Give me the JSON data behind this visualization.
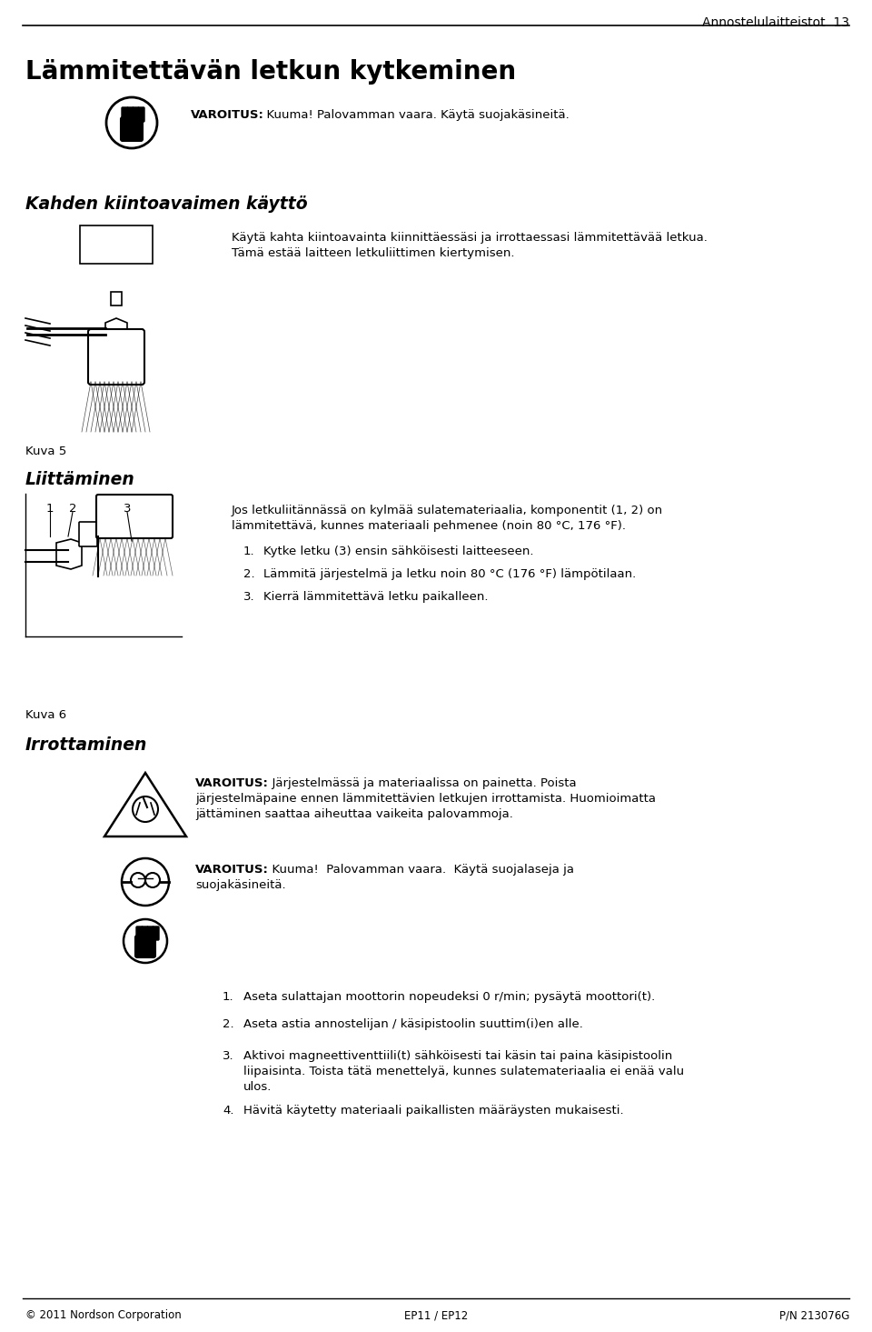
{
  "bg_color": "#ffffff",
  "page_width": 9.6,
  "page_height": 14.65,
  "header_text": "Annostelulaitteistot  13",
  "title": "Lämmitettävän letkun kytkeminen",
  "section1_heading": "Kahden kiintoavaimen käyttö",
  "section1_text1": "Käytä kahta kiintoavainta kiinnittäessäsi ja irrottaessasi lämmitettävää letkua.",
  "section1_text2": "Tämä estää laitteen letkuliittimen kiertymisen.",
  "kuva5_text": "Kuva 5",
  "section2_heading": "Liittäminen",
  "section2_body1": "Jos letkuliitännässä on kylmää sulatemateriaalia, komponentit (1, 2) on",
  "section2_body2": "lämmitettävä, kunnes materiaali pehmenee (noin 80 °C, 176 °F).",
  "step1_text": "1.   Kytke letku (3) ensin sähköisesti laitteeseen.",
  "step2_text": "2.   Lämmitä järjestelmä ja letku noin 80 °C (176 °F) lämpötilaan.",
  "step3_text": "3.   Kierrä lämmitettävä letku paikalleen.",
  "kuva6_text": "Kuva 6",
  "section3_heading": "Irrottaminen",
  "warning1_line1": "VAROITUS:  Järjestelmässä ja materiaalissa on painetta. Poista",
  "warning1_line2": "järjestelmäpaine ennen lämmitettävien letkujen irrottamista. Huomioimatta",
  "warning1_line3": "jättäminen saattaa aiheuttaa vaikeita palovammoja.",
  "warning2_line1": "VAROITUS:  Kuuma!  Palovamman vaara.  Käytä suojalaseja ja",
  "warning2_line2": "suojakäsineitä.",
  "varoitus_top_line1": "VAROITUS:  Kuuma! Palovamman vaara. Käytä suojakäsineitä.",
  "s3_step1_text": "1.   Aseta sulattajan moottorin nopeudeksi 0 r/min; pysäytä moottori(t).",
  "s3_step2_text": "2.   Aseta astia annostelijan / käsipistoolin suuttim(i)en alle.",
  "s3_step3_text1": "3.   Aktivoi magneettiventtiili(t) sähköisesti tai käsin tai paina käsipistoolin",
  "s3_step3_text2": "liipaisinta. Toista tätä menettelyä, kunnes sulatemateriaalia ei enää valu",
  "s3_step3_text3": "ulos.",
  "s3_step4_text": "4.   Hävitä käytetty materiaali paikallisten määräysten mukaisesti.",
  "footer_left": "© 2011 Nordson Corporation",
  "footer_center": "EP11 / EP12",
  "footer_right": "P/N 213076G"
}
